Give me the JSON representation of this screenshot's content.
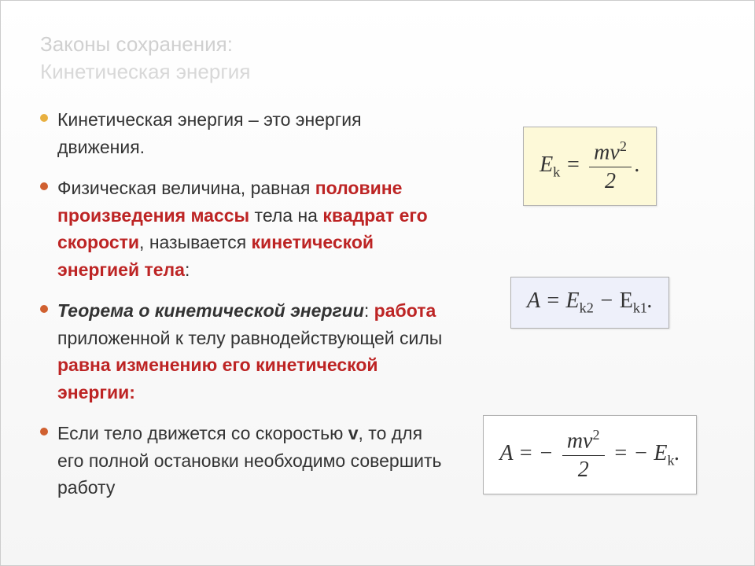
{
  "title": {
    "line1": "Законы сохранения:",
    "line2": "Кинетическая энергия",
    "color1": "#d0d0d0",
    "color2": "#d8d8d8"
  },
  "bullets": [
    {
      "color": "#e8b040"
    },
    {
      "color": "#d06030"
    },
    {
      "color": "#d06030"
    },
    {
      "color": "#d06030"
    }
  ],
  "text": {
    "b1_a": "Кинетическая энергия – это энергия движения.",
    "b2_a": "Физическая величина, равная ",
    "b2_b": "половине произведения ",
    "b2_c": "массы",
    "b2_d": " тела на ",
    "b2_e": "квадрат его скорости",
    "b2_f": ", называется ",
    "b2_g": "кинетической энергией тела",
    "b2_h": ":",
    "b3_a": "Теорема о кинетической энергии",
    "b3_b": ": ",
    "b3_c": "работа",
    "b3_d": " приложенной к телу равнодействующей силы ",
    "b3_e": "равна изменению его кинетической энергии:",
    "b4_a": "Если тело движется со скоростью ",
    "b4_b": "v",
    "b4_c": ", то для его полной остановки необходимо совершить работу"
  },
  "formulas": {
    "f1": {
      "E": "E",
      "ksub": "k",
      "eq": " = ",
      "m": "m",
      "v": "v",
      "sq": "2",
      "den": "2",
      "dot": "."
    },
    "f2": {
      "A": "A",
      "eq": " = ",
      "E": "E",
      "k2": "k2",
      "minus": " − ",
      "E2": "E",
      "k1": "k1",
      "dot": "."
    },
    "f3": {
      "A": "A",
      "eq": " = − ",
      "m": "m",
      "v": "v",
      "sq": "2",
      "den": "2",
      "eq2": " = − ",
      "E": "E",
      "ksub": "k",
      "dot": "."
    }
  },
  "colors": {
    "highlight": "#bd2424",
    "text": "#333333",
    "box_yellow": "#fdf9d8",
    "box_blue": "#eef0fa",
    "box_white": "#ffffff",
    "box_border": "#b0b0b0"
  }
}
